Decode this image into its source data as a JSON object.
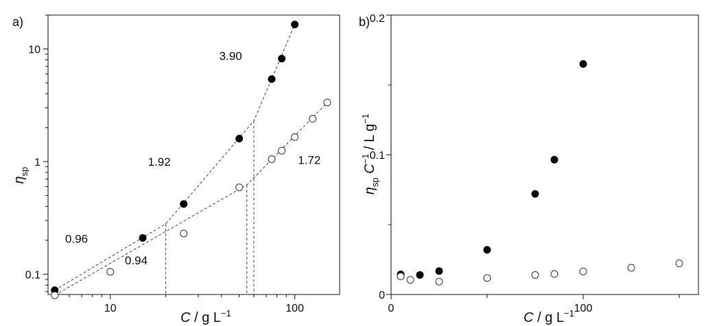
{
  "chart_data": [
    {
      "panel": "a)",
      "type": "scatter",
      "xscale": "log",
      "yscale": "log",
      "xlim": [
        4.6,
        175
      ],
      "ylim": [
        0.066,
        20
      ],
      "xlabel_symbol": "C",
      "xlabel_units": " / g L",
      "xlabel_exp": "−1",
      "ylabel_symbol": "η",
      "ylabel_sub": "sp",
      "xticks": [
        {
          "v": 10,
          "label": "10"
        },
        {
          "v": 100,
          "label": "100"
        }
      ],
      "yticks": [
        {
          "v": 0.1,
          "label": "0.1"
        },
        {
          "v": 1,
          "label": "1"
        },
        {
          "v": 10,
          "label": "10"
        }
      ],
      "series": [
        {
          "style": "filled",
          "x": [
            5,
            15,
            25,
            50,
            75,
            85,
            100
          ],
          "y": [
            0.072,
            0.21,
            0.42,
            1.6,
            5.4,
            8.2,
            16.5
          ]
        },
        {
          "style": "open",
          "x": [
            5,
            10,
            25,
            50,
            75,
            85,
            100,
            125,
            150
          ],
          "y": [
            0.065,
            0.105,
            0.23,
            0.59,
            1.05,
            1.25,
            1.65,
            2.4,
            3.35
          ]
        }
      ],
      "fit_lines": [
        {
          "x": [
            5,
            20,
            60,
            100
          ],
          "y": [
            0.072,
            0.28,
            2.3,
            16.5
          ]
        },
        {
          "x": [
            5,
            55,
            150
          ],
          "y": [
            0.065,
            0.62,
            3.35
          ]
        }
      ],
      "guides_x": [
        20,
        55,
        60
      ],
      "annotations": [
        {
          "text": "3.90",
          "x": 39,
          "y": 8
        },
        {
          "text": "1.92",
          "x": 16,
          "y": 0.92
        },
        {
          "text": "1.72",
          "x": 104,
          "y": 0.95
        },
        {
          "text": "0.96",
          "x": 5.7,
          "y": 0.19
        },
        {
          "text": "0.94",
          "x": 12,
          "y": 0.122
        }
      ]
    },
    {
      "panel": "b)",
      "type": "scatter",
      "xlim": [
        0,
        160
      ],
      "ylim": [
        0,
        0.2
      ],
      "xlabel_symbol": "C",
      "xlabel_units": " / g L",
      "xlabel_exp": "−1",
      "ylabel_symbol": "η",
      "ylabel_sub": "sp",
      "ylabel_rest": " C",
      "ylabel_exp1": "−1",
      "ylabel_units": " / L g",
      "ylabel_exp2": "−1",
      "xticks": [
        {
          "v": 0,
          "label": "0"
        },
        {
          "v": 100,
          "label": "100"
        }
      ],
      "yticks": [
        {
          "v": 0,
          "label": "0"
        },
        {
          "v": 0.1,
          "label": "0.1"
        },
        {
          "v": 0.2,
          "label": "0.2"
        }
      ],
      "series": [
        {
          "style": "filled",
          "x": [
            5,
            15,
            25,
            50,
            75,
            85,
            100
          ],
          "y": [
            0.0144,
            0.014,
            0.0168,
            0.032,
            0.072,
            0.0965,
            0.165
          ]
        },
        {
          "style": "open",
          "x": [
            5,
            10,
            25,
            50,
            75,
            85,
            100,
            125,
            150
          ],
          "y": [
            0.013,
            0.0105,
            0.0092,
            0.0118,
            0.014,
            0.0147,
            0.0165,
            0.0192,
            0.0223
          ]
        }
      ]
    }
  ]
}
